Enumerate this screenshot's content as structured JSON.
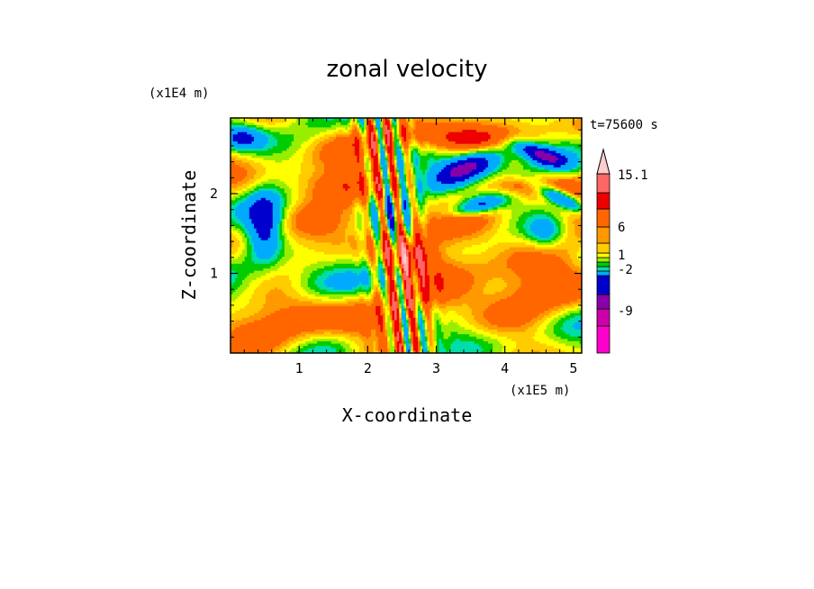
{
  "chart_data": {
    "type": "heatmap",
    "title": "zonal velocity",
    "xlabel": "X-coordinate",
    "ylabel": "Z-coordinate",
    "x_scale_label": "(x1E5 m)",
    "y_scale_label": "(x1E4 m)",
    "time_label": "t=75600 s",
    "xlim": [
      0,
      5.12
    ],
    "ylim": [
      0,
      2.95
    ],
    "x_ticks": [
      "1",
      "2",
      "3",
      "4",
      "5"
    ],
    "y_ticks": [
      "1",
      "2"
    ],
    "x_tick_values": [
      1,
      2,
      3,
      4,
      5
    ],
    "y_tick_values": [
      1,
      2
    ],
    "colorbar": {
      "levels": [
        -15,
        -12,
        -9,
        -6,
        -3,
        -2,
        -1,
        0,
        1,
        2,
        3,
        6,
        9,
        12,
        15.1
      ],
      "colors": [
        "#ff00cc",
        "#cc00aa",
        "#8800aa",
        "#0000cc",
        "#00aaff",
        "#00ddaa",
        "#00cc00",
        "#99ee00",
        "#ffff00",
        "#ffcc00",
        "#ff9900",
        "#ff6600",
        "#ee0000",
        "#ff6666",
        "#ffaaaa",
        "#ffcccc"
      ],
      "labels": [
        "15.1",
        "6",
        "1",
        "-2",
        "-9"
      ],
      "label_values": [
        15.1,
        6,
        1,
        -2,
        -9
      ],
      "extend": "max"
    },
    "grid": false
  }
}
